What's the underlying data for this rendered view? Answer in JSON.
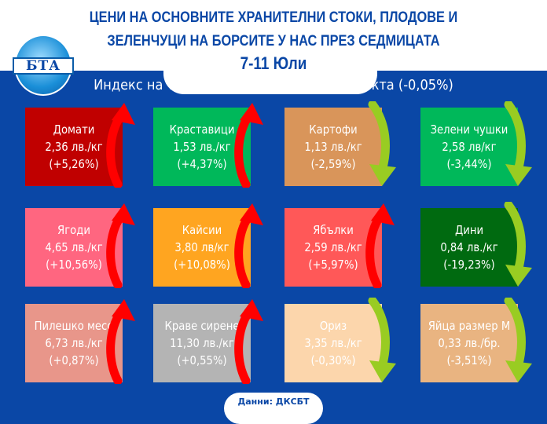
{
  "header": {
    "title_line1": "ЦЕНИ НА ОСНОВНИТЕ ХРАНИТЕЛНИ СТОКИ, ПЛОДОВЕ И",
    "title_line2": "ЗЕЛЕНЧУЦИ НА БОРСИТЕ У НАС ПРЕЗ СЕДМИЦАТА",
    "period": "7-11 Юли",
    "logo_text": "БТА"
  },
  "index_text": "Индекс на тържищните цени – 2,177 пункта (-0,05%)",
  "colors": {
    "background": "#0a47a6",
    "up_arrow": "#ff0000",
    "down_arrow": "#99cc22"
  },
  "items": [
    {
      "name": "Домати",
      "price": "2,36 лв./кг",
      "change": "(+5,26%)",
      "trend": "up",
      "color": "#c00000"
    },
    {
      "name": "Краставици",
      "price": "1,53 лв./кг",
      "change": "(+4,37%)",
      "trend": "up",
      "color": "#00b85a"
    },
    {
      "name": "Картофи",
      "price": "1,13 лв./кг",
      "change": "(-2,59%)",
      "trend": "down",
      "color": "#d9955a"
    },
    {
      "name": "Зелени чушки",
      "price": "2,58 лв/кг",
      "change": "(-3,44%)",
      "trend": "down",
      "color": "#00b85a"
    },
    {
      "name": "Ягоди",
      "price": "4,65 лв./кг",
      "change": "(+10,56%)",
      "trend": "up",
      "color": "#ff6680"
    },
    {
      "name": "Кайсии",
      "price": "3,80 лв/кг",
      "change": "(+10,08%)",
      "trend": "up",
      "color": "#ffa520"
    },
    {
      "name": "Ябълки",
      "price": "2,59 лв./кг",
      "change": "(+5,97%)",
      "trend": "up",
      "color": "#ff5858"
    },
    {
      "name": "Дини",
      "price": "0,84 лв./кг",
      "change": "(-19,23%)",
      "trend": "down",
      "color": "#006a10"
    },
    {
      "name": "Пилешко месо",
      "price": "6,73 лв./кг",
      "change": "(+0,87%)",
      "trend": "up",
      "color": "#e8968a"
    },
    {
      "name": "Краве сирене",
      "price": "11,30 лв./кг",
      "change": "(+0,55%)",
      "trend": "up",
      "color": "#b4b4b4"
    },
    {
      "name": "Ориз",
      "price": "3,35 лв./кг",
      "change": "(-0,30%)",
      "trend": "down",
      "color": "#fcd6ac"
    },
    {
      "name": "Яйца размер М",
      "price": "0,33 лв./бр.",
      "change": "(-3,51%)",
      "trend": "down",
      "color": "#e9b481"
    }
  ],
  "footer": "Данни: ДКСБТ"
}
